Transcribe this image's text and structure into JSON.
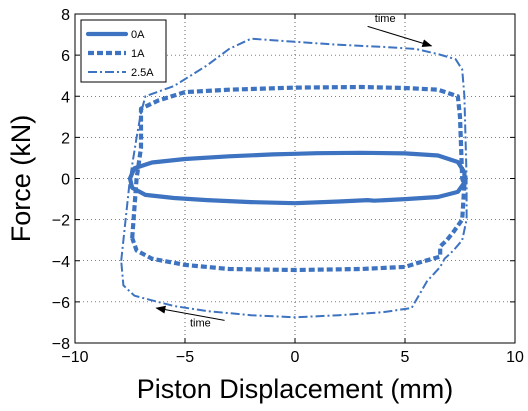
{
  "chart_data": {
    "type": "line",
    "xlabel": "Piston Displacement (mm)",
    "ylabel": "Force (kN)",
    "xlim": [
      -10,
      10
    ],
    "ylim": [
      -8,
      8
    ],
    "xticks": [
      -10,
      -5,
      0,
      5,
      10
    ],
    "yticks": [
      -8,
      -6,
      -4,
      -2,
      0,
      2,
      4,
      6,
      8
    ],
    "xtick_labels": [
      "−10",
      "−5",
      "0",
      "5",
      "10"
    ],
    "ytick_labels": [
      "−8",
      "−6",
      "−4",
      "−2",
      "0",
      "2",
      "4",
      "6",
      "8"
    ],
    "grid": true,
    "legend_position": "top-left",
    "color": "#3d73c0",
    "series": [
      {
        "name": "0A",
        "style": "solid",
        "points": [
          [
            -7.5,
            0
          ],
          [
            -7.3,
            0.5
          ],
          [
            -6.5,
            0.78
          ],
          [
            -5,
            0.95
          ],
          [
            -3,
            1.08
          ],
          [
            -1,
            1.17
          ],
          [
            0,
            1.2
          ],
          [
            1,
            1.23
          ],
          [
            3,
            1.25
          ],
          [
            5,
            1.22
          ],
          [
            6.5,
            1.12
          ],
          [
            7.4,
            0.8
          ],
          [
            7.7,
            0.3
          ],
          [
            7.7,
            -0.2
          ],
          [
            7.4,
            -0.65
          ],
          [
            6.5,
            -0.9
          ],
          [
            5,
            -1.0
          ],
          [
            3.6,
            -1.08
          ],
          [
            3.3,
            -1.05
          ],
          [
            2,
            -1.12
          ],
          [
            0,
            -1.2
          ],
          [
            -2,
            -1.15
          ],
          [
            -4,
            -1.05
          ],
          [
            -5.5,
            -0.95
          ],
          [
            -6.8,
            -0.8
          ],
          [
            -7.4,
            -0.45
          ],
          [
            -7.5,
            0
          ]
        ]
      },
      {
        "name": "1A",
        "style": "dotted",
        "points": [
          [
            -7.4,
            -2.9
          ],
          [
            -7.2,
            0
          ],
          [
            -7.0,
            1.5
          ],
          [
            -7.0,
            2.6
          ],
          [
            -7.0,
            3.4
          ],
          [
            -6.2,
            3.8
          ],
          [
            -5,
            4.2
          ],
          [
            -3,
            4.32
          ],
          [
            0,
            4.42
          ],
          [
            3,
            4.45
          ],
          [
            5,
            4.4
          ],
          [
            6.5,
            4.32
          ],
          [
            7.4,
            4.0
          ],
          [
            7.5,
            3.0
          ],
          [
            7.6,
            0
          ],
          [
            7.7,
            -0.3
          ],
          [
            7.6,
            -2.0
          ],
          [
            7.2,
            -2.6
          ],
          [
            6.9,
            -3.0
          ],
          [
            6.6,
            -3.3
          ],
          [
            6.6,
            -3.8
          ],
          [
            5.6,
            -4.1
          ],
          [
            5,
            -4.3
          ],
          [
            3,
            -4.4
          ],
          [
            0,
            -4.45
          ],
          [
            -3,
            -4.4
          ],
          [
            -5,
            -4.2
          ],
          [
            -6.5,
            -3.9
          ],
          [
            -7.2,
            -3.5
          ],
          [
            -7.4,
            -2.9
          ]
        ]
      },
      {
        "name": "2.5A",
        "style": "dashdot",
        "points": [
          [
            -7.9,
            -4.0
          ],
          [
            -7.5,
            0
          ],
          [
            -7.2,
            2.0
          ],
          [
            -7.0,
            3.2
          ],
          [
            -6.8,
            4.0
          ],
          [
            -5.5,
            4.5
          ],
          [
            -4,
            5.5
          ],
          [
            -3,
            6.3
          ],
          [
            -2,
            6.8
          ],
          [
            0,
            6.65
          ],
          [
            2,
            6.5
          ],
          [
            4,
            6.4
          ],
          [
            5.5,
            6.3
          ],
          [
            6.5,
            6.05
          ],
          [
            7.3,
            5.8
          ],
          [
            7.6,
            5.3
          ],
          [
            7.7,
            4.0
          ],
          [
            7.8,
            0
          ],
          [
            7.8,
            -2.0
          ],
          [
            7.6,
            -3.0
          ],
          [
            7.2,
            -3.5
          ],
          [
            6.8,
            -3.9
          ],
          [
            6.6,
            -4.3
          ],
          [
            6,
            -5.0
          ],
          [
            5.3,
            -6.3
          ],
          [
            4,
            -6.5
          ],
          [
            2,
            -6.65
          ],
          [
            0,
            -6.75
          ],
          [
            -2,
            -6.65
          ],
          [
            -4,
            -6.45
          ],
          [
            -5.5,
            -6.2
          ],
          [
            -6.6,
            -5.9
          ],
          [
            -7.3,
            -5.7
          ],
          [
            -7.8,
            -5.2
          ],
          [
            -7.9,
            -4.0
          ]
        ]
      }
    ],
    "annotations": [
      {
        "text": "time",
        "arrow_from": [
          3.3,
          7.4
        ],
        "arrow_to": [
          6.2,
          6.45
        ],
        "label_at": [
          4.1,
          7.6
        ]
      },
      {
        "text": "time",
        "arrow_from": [
          -3.2,
          -6.9
        ],
        "arrow_to": [
          -6.3,
          -6.3
        ],
        "label_at": [
          -4.3,
          -7.2
        ]
      }
    ]
  }
}
